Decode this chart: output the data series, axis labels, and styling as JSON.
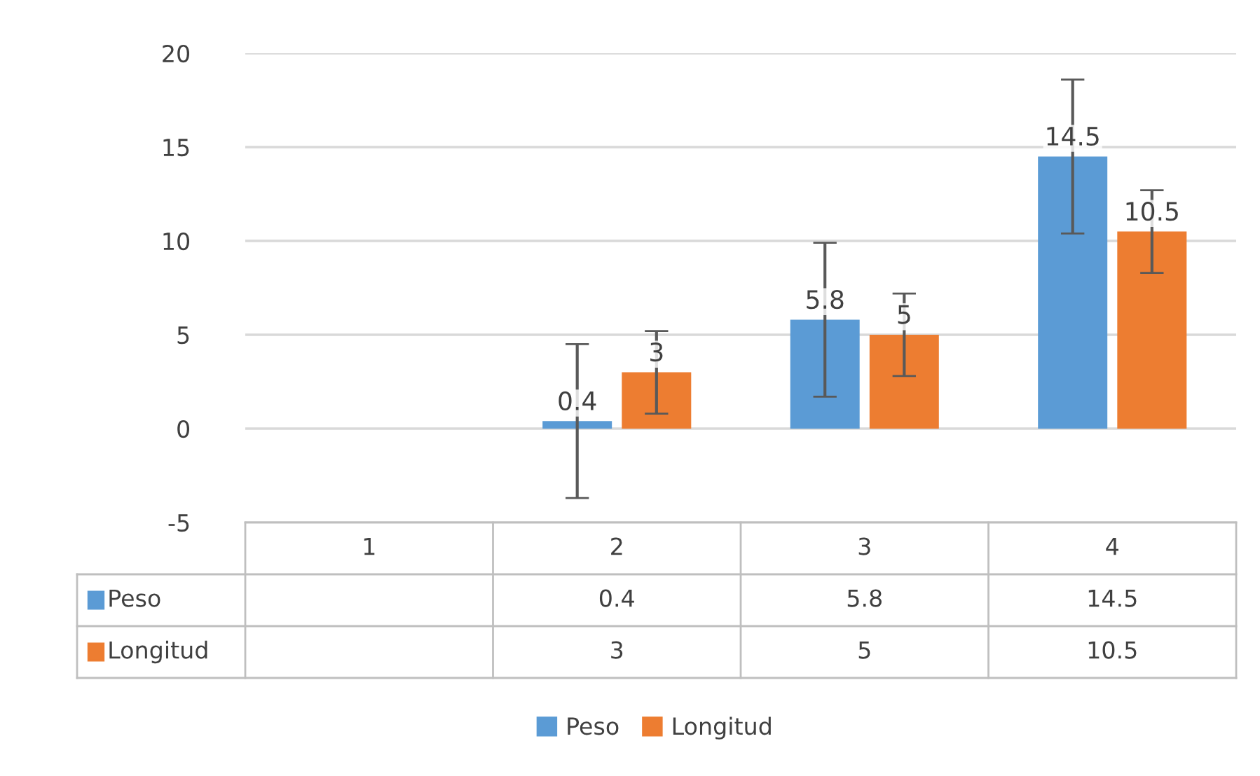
{
  "chart_data": {
    "type": "bar",
    "categories": [
      "1",
      "2",
      "3",
      "4"
    ],
    "series": [
      {
        "name": "Peso",
        "color": "#5b9bd5",
        "values": [
          null,
          0.4,
          5.8,
          14.5
        ],
        "value_labels": [
          null,
          "0.4",
          "5.8",
          "14.5"
        ],
        "errors": [
          null,
          4.1,
          4.1,
          4.1
        ]
      },
      {
        "name": "Longitud",
        "color": "#ed7d31",
        "values": [
          null,
          3,
          5,
          10.5
        ],
        "value_labels": [
          null,
          "3",
          "5",
          "10.5"
        ],
        "errors": [
          null,
          2.2,
          2.2,
          2.2
        ]
      }
    ],
    "ylim": [
      -5,
      20
    ],
    "yticks": [
      -5,
      0,
      5,
      10,
      15,
      20
    ],
    "grid": "y",
    "legend": "bottom",
    "annotations": [
      "0.4",
      "5.8",
      "14.5",
      "3",
      "5",
      "10.5"
    ]
  }
}
